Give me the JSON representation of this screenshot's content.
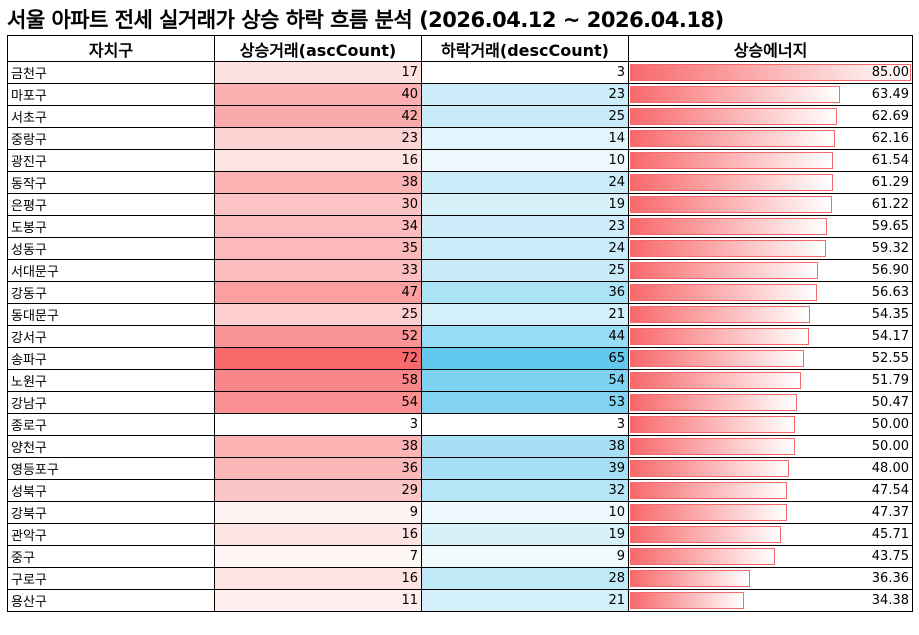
{
  "title": "서울 아파트 전세 실거래가 상승 하락 흐름 분석 (2026.04.12 ~ 2026.04.18)",
  "table": {
    "headers": [
      "자치구",
      "상승거래(ascCount)",
      "하락거래(descCount)",
      "상승에너지"
    ],
    "rows": [
      [
        "금천구",
        17,
        3,
        {
          "value": 85,
          "label": "85.00"
        }
      ],
      [
        "마포구",
        40,
        23,
        {
          "value": 63.49,
          "label": "63.49"
        }
      ],
      [
        "서초구",
        42,
        25,
        {
          "value": 62.69,
          "label": "62.69"
        }
      ],
      [
        "중랑구",
        23,
        14,
        {
          "value": 62.16,
          "label": "62.16"
        }
      ],
      [
        "광진구",
        16,
        10,
        {
          "value": 61.54,
          "label": "61.54"
        }
      ],
      [
        "동작구",
        38,
        24,
        {
          "value": 61.29,
          "label": "61.29"
        }
      ],
      [
        "은평구",
        30,
        19,
        {
          "value": 61.22,
          "label": "61.22"
        }
      ],
      [
        "도봉구",
        34,
        23,
        {
          "value": 59.65,
          "label": "59.65"
        }
      ],
      [
        "성동구",
        35,
        24,
        {
          "value": 59.32,
          "label": "59.32"
        }
      ],
      [
        "서대문구",
        33,
        25,
        {
          "value": 56.9,
          "label": "56.90"
        }
      ],
      [
        "강동구",
        47,
        36,
        {
          "value": 56.63,
          "label": "56.63"
        }
      ],
      [
        "동대문구",
        25,
        21,
        {
          "value": 54.35,
          "label": "54.35"
        }
      ],
      [
        "강서구",
        52,
        44,
        {
          "value": 54.17,
          "label": "54.17"
        }
      ],
      [
        "송파구",
        72,
        65,
        {
          "value": 52.55,
          "label": "52.55"
        }
      ],
      [
        "노원구",
        58,
        54,
        {
          "value": 51.79,
          "label": "51.79"
        }
      ],
      [
        "강남구",
        54,
        53,
        {
          "value": 50.47,
          "label": "50.47"
        }
      ],
      [
        "종로구",
        3,
        3,
        {
          "value": 50,
          "label": "50.00"
        }
      ],
      [
        "양천구",
        38,
        38,
        {
          "value": 50,
          "label": "50.00"
        }
      ],
      [
        "영등포구",
        36,
        39,
        {
          "value": 48,
          "label": "48.00"
        }
      ],
      [
        "성북구",
        29,
        32,
        {
          "value": 47.54,
          "label": "47.54"
        }
      ],
      [
        "강북구",
        9,
        10,
        {
          "value": 47.37,
          "label": "47.37"
        }
      ],
      [
        "관악구",
        16,
        19,
        {
          "value": 45.71,
          "label": "45.71"
        }
      ],
      [
        "중구",
        7,
        9,
        {
          "value": 43.75,
          "label": "43.75"
        }
      ],
      [
        "구로구",
        16,
        28,
        {
          "value": 36.36,
          "label": "36.36"
        }
      ],
      [
        "용산구",
        11,
        21,
        {
          "value": 34.38,
          "label": "34.38"
        }
      ]
    ]
  }
}
